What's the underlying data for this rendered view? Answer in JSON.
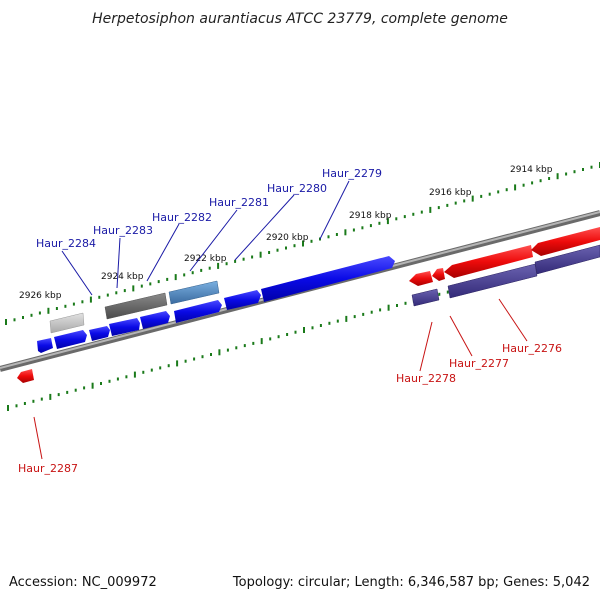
{
  "title": "Herpetosiphon aurantiacus ATCC 23779, complete genome",
  "footer": {
    "accession": "Accession: NC_009972",
    "topology": "Topology: circular; Length: 6,346,587 bp; Genes: 5,042"
  },
  "ticks": {
    "t2914": "2914 kbp",
    "t2916": "2916 kbp",
    "t2918": "2918 kbp",
    "t2920": "2920 kbp",
    "t2922": "2922 kbp",
    "t2924": "2924 kbp",
    "t2926": "2926 kbp"
  },
  "genes": {
    "g2276": "Haur_2276",
    "g2277": "Haur_2277",
    "g2278": "Haur_2278",
    "g2279": "Haur_2279",
    "g2280": "Haur_2280",
    "g2281": "Haur_2281",
    "g2282": "Haur_2282",
    "g2283": "Haur_2283",
    "g2284": "Haur_2284",
    "g2287": "Haur_2287"
  },
  "colors": {
    "forward_strand": "#1010e0",
    "reverse_strand": "#e01010",
    "reverse_secondary": "#4a4090",
    "backbone": "#888888",
    "tick_dots": "#1a7a1a"
  }
}
